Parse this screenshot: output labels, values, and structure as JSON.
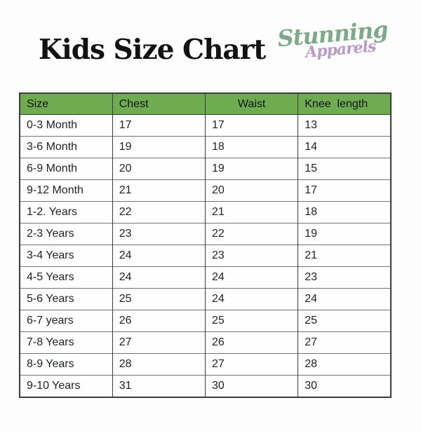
{
  "page": {
    "title": "Kids Size Chart"
  },
  "logo": {
    "name": "Stunning",
    "sub": "Apparels",
    "name_color": "#7fa98a",
    "sub_color": "#b89bc9"
  },
  "table": {
    "header_bg": "#6fab50",
    "columns": [
      {
        "key": "size",
        "label": "Size",
        "align": "left"
      },
      {
        "key": "chest",
        "label": "Chest",
        "align": "left"
      },
      {
        "key": "waist",
        "label": "Waist",
        "align": "center"
      },
      {
        "key": "knee_length",
        "label": "Knee  length",
        "align": "left"
      }
    ],
    "rows": [
      [
        "0-3 Month",
        "17",
        "17",
        "13"
      ],
      [
        "3-6 Month",
        "19",
        "18",
        "14"
      ],
      [
        "6-9 Month",
        "20",
        "19",
        "15"
      ],
      [
        "9-12 Month",
        "21",
        "20",
        "17"
      ],
      [
        "1-2. Years",
        "22",
        "21",
        "18"
      ],
      [
        "2-3 Years",
        "23",
        "22",
        "19"
      ],
      [
        "3-4 Years",
        "24",
        "23",
        "21"
      ],
      [
        "4-5 Years",
        "24",
        "24",
        "23"
      ],
      [
        "5-6 Years",
        "25",
        "24",
        "24"
      ],
      [
        "6-7 years",
        "26",
        "25",
        "25"
      ],
      [
        "7-8 Years",
        "27",
        "26",
        "27"
      ],
      [
        "8-9 Years",
        "28",
        "27",
        "28"
      ],
      [
        "9-10 Years",
        "31",
        "30",
        "30"
      ]
    ]
  },
  "chart_data": {
    "type": "table",
    "title": "Kids Size Chart",
    "columns": [
      "Size",
      "Chest",
      "Waist",
      "Knee length"
    ],
    "rows": [
      [
        "0-3 Month",
        17,
        17,
        13
      ],
      [
        "3-6 Month",
        19,
        18,
        14
      ],
      [
        "6-9 Month",
        20,
        19,
        15
      ],
      [
        "9-12 Month",
        21,
        20,
        17
      ],
      [
        "1-2. Years",
        22,
        21,
        18
      ],
      [
        "2-3 Years",
        23,
        22,
        19
      ],
      [
        "3-4 Years",
        24,
        23,
        21
      ],
      [
        "4-5 Years",
        24,
        24,
        23
      ],
      [
        "5-6 Years",
        25,
        24,
        24
      ],
      [
        "6-7 years",
        26,
        25,
        25
      ],
      [
        "7-8 Years",
        27,
        26,
        27
      ],
      [
        "8-9 Years",
        28,
        27,
        28
      ],
      [
        "9-10 Years",
        31,
        30,
        30
      ]
    ]
  }
}
